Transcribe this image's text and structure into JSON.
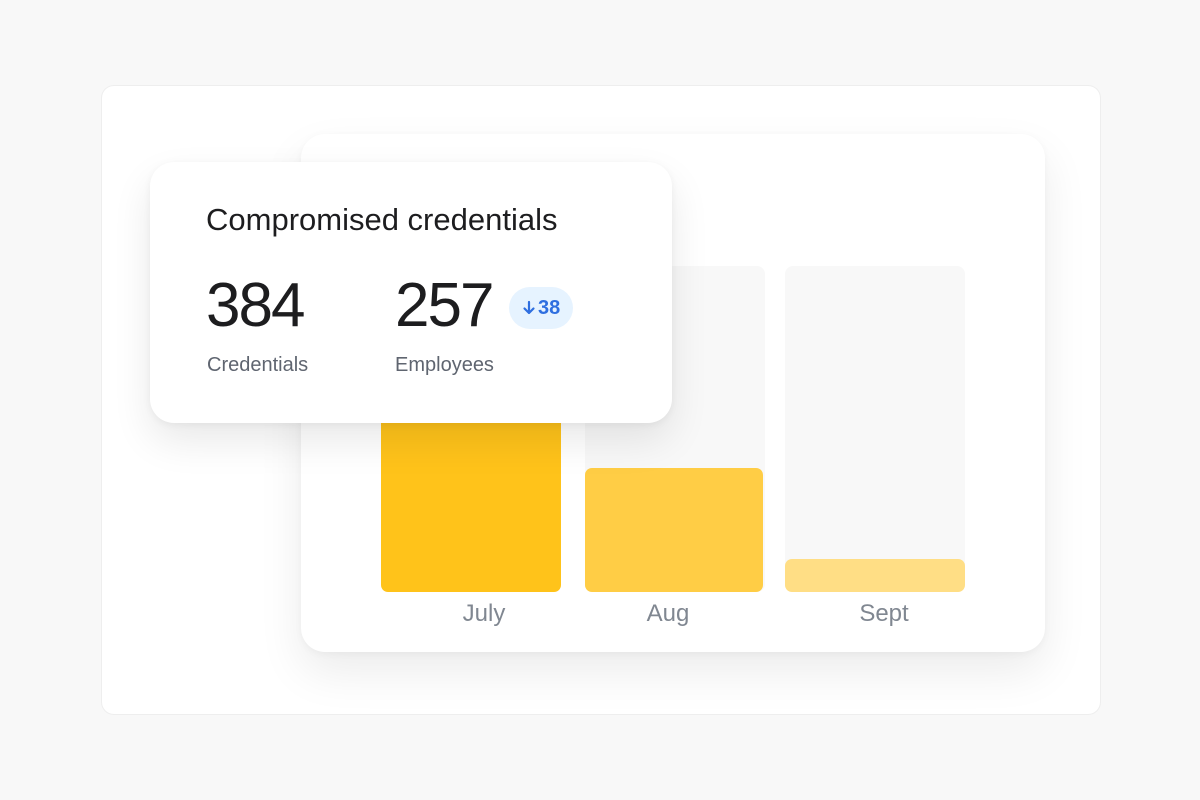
{
  "card": {
    "title": "Compromised credentials",
    "credentials": {
      "value": "384",
      "label": "Credentials"
    },
    "employees": {
      "value": "257",
      "label": "Employees",
      "delta": "38",
      "delta_direction": "down",
      "delta_icon": "arrow-down-icon"
    }
  },
  "chart_data": {
    "type": "bar",
    "categories": [
      "July",
      "Aug",
      "Sept"
    ],
    "values": [
      100,
      38,
      10
    ],
    "colors": [
      "#ffc31a",
      "#ffcd45",
      "#ffde85"
    ],
    "track_color": "#f8f8f8",
    "ylim": [
      0,
      100
    ],
    "grid": false
  }
}
